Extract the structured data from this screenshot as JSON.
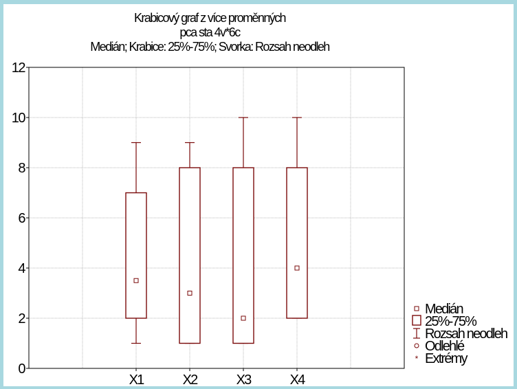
{
  "chart_data": {
    "type": "box",
    "title": [
      "Krabicový graf z více proměnných",
      "pca sta 4v*6c",
      "Medián; Krabice: 25%-75%; Svorka: Rozsah neodleh"
    ],
    "categories": [
      "X1",
      "X2",
      "X3",
      "X4"
    ],
    "ylim": [
      0,
      12
    ],
    "yticks": [
      0,
      2,
      4,
      6,
      8,
      10,
      12
    ],
    "grid": true,
    "series": [
      {
        "category": "X1",
        "median": 3.5,
        "q1": 2,
        "q3": 7,
        "whisker_low": 1,
        "whisker_high": 9
      },
      {
        "category": "X2",
        "median": 3,
        "q1": 1,
        "q3": 8,
        "whisker_low": 1,
        "whisker_high": 9
      },
      {
        "category": "X3",
        "median": 2,
        "q1": 1,
        "q3": 8,
        "whisker_low": 1,
        "whisker_high": 10
      },
      {
        "category": "X4",
        "median": 4,
        "q1": 2,
        "q3": 8,
        "whisker_low": 2,
        "whisker_high": 10
      }
    ],
    "legend": {
      "position": "bottom-right",
      "entries": [
        "Medián",
        "25%-75%",
        "Rozsah neodleh",
        "Odlehlé",
        "Extrémy"
      ]
    },
    "colors": {
      "box": "#7a0a0a",
      "grid": "#b8b8b8",
      "background": "#a8d8e0"
    }
  }
}
